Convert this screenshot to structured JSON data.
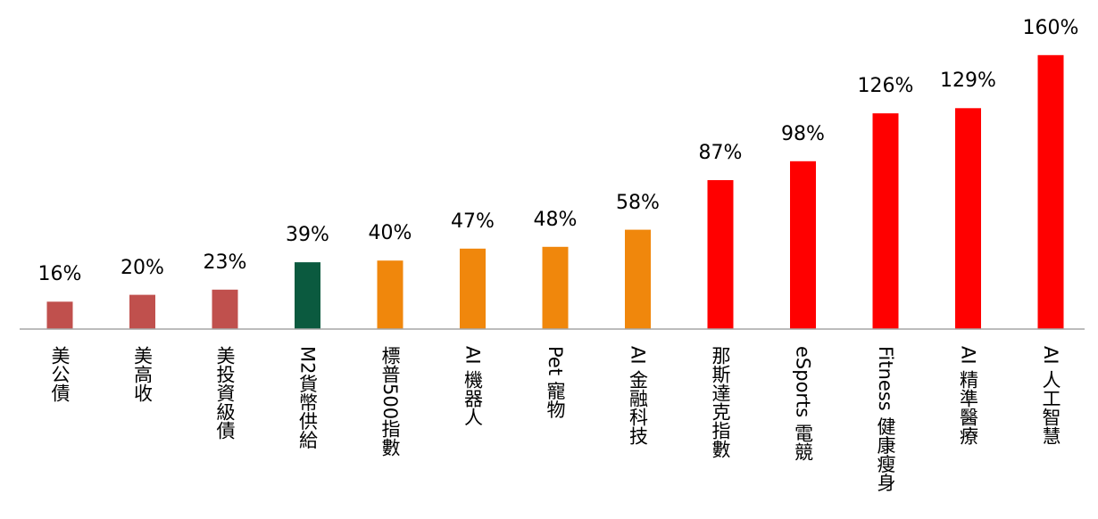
{
  "chart_data": {
    "type": "bar",
    "title": "",
    "xlabel": "",
    "ylabel": "",
    "ylim": [
      0,
      160
    ],
    "grid": false,
    "legend": "none",
    "categories": [
      "美公債",
      "美高收",
      "美投資級債",
      "M2貨幣供給",
      "標普500指數",
      "AI 機器人",
      "Pet 寵物",
      "AI 金融科技",
      "那斯達克指數",
      "eSports 電競",
      "Fitness 健康瘦身",
      "AI 精準醫療",
      "AI 人工智慧"
    ],
    "values": [
      16,
      20,
      23,
      39,
      40,
      47,
      48,
      58,
      87,
      98,
      126,
      129,
      160
    ],
    "value_labels": [
      "16%",
      "20%",
      "23%",
      "39%",
      "40%",
      "47%",
      "48%",
      "58%",
      "87%",
      "98%",
      "126%",
      "129%",
      "160%"
    ],
    "bar_colors": [
      "#c0504d",
      "#c0504d",
      "#c0504d",
      "#0b5a3f",
      "#f0870c",
      "#f0870c",
      "#f0870c",
      "#f0870c",
      "#ff0000",
      "#ff0000",
      "#ff0000",
      "#ff0000",
      "#ff0000"
    ],
    "axis_color": "#a6a6a6"
  }
}
